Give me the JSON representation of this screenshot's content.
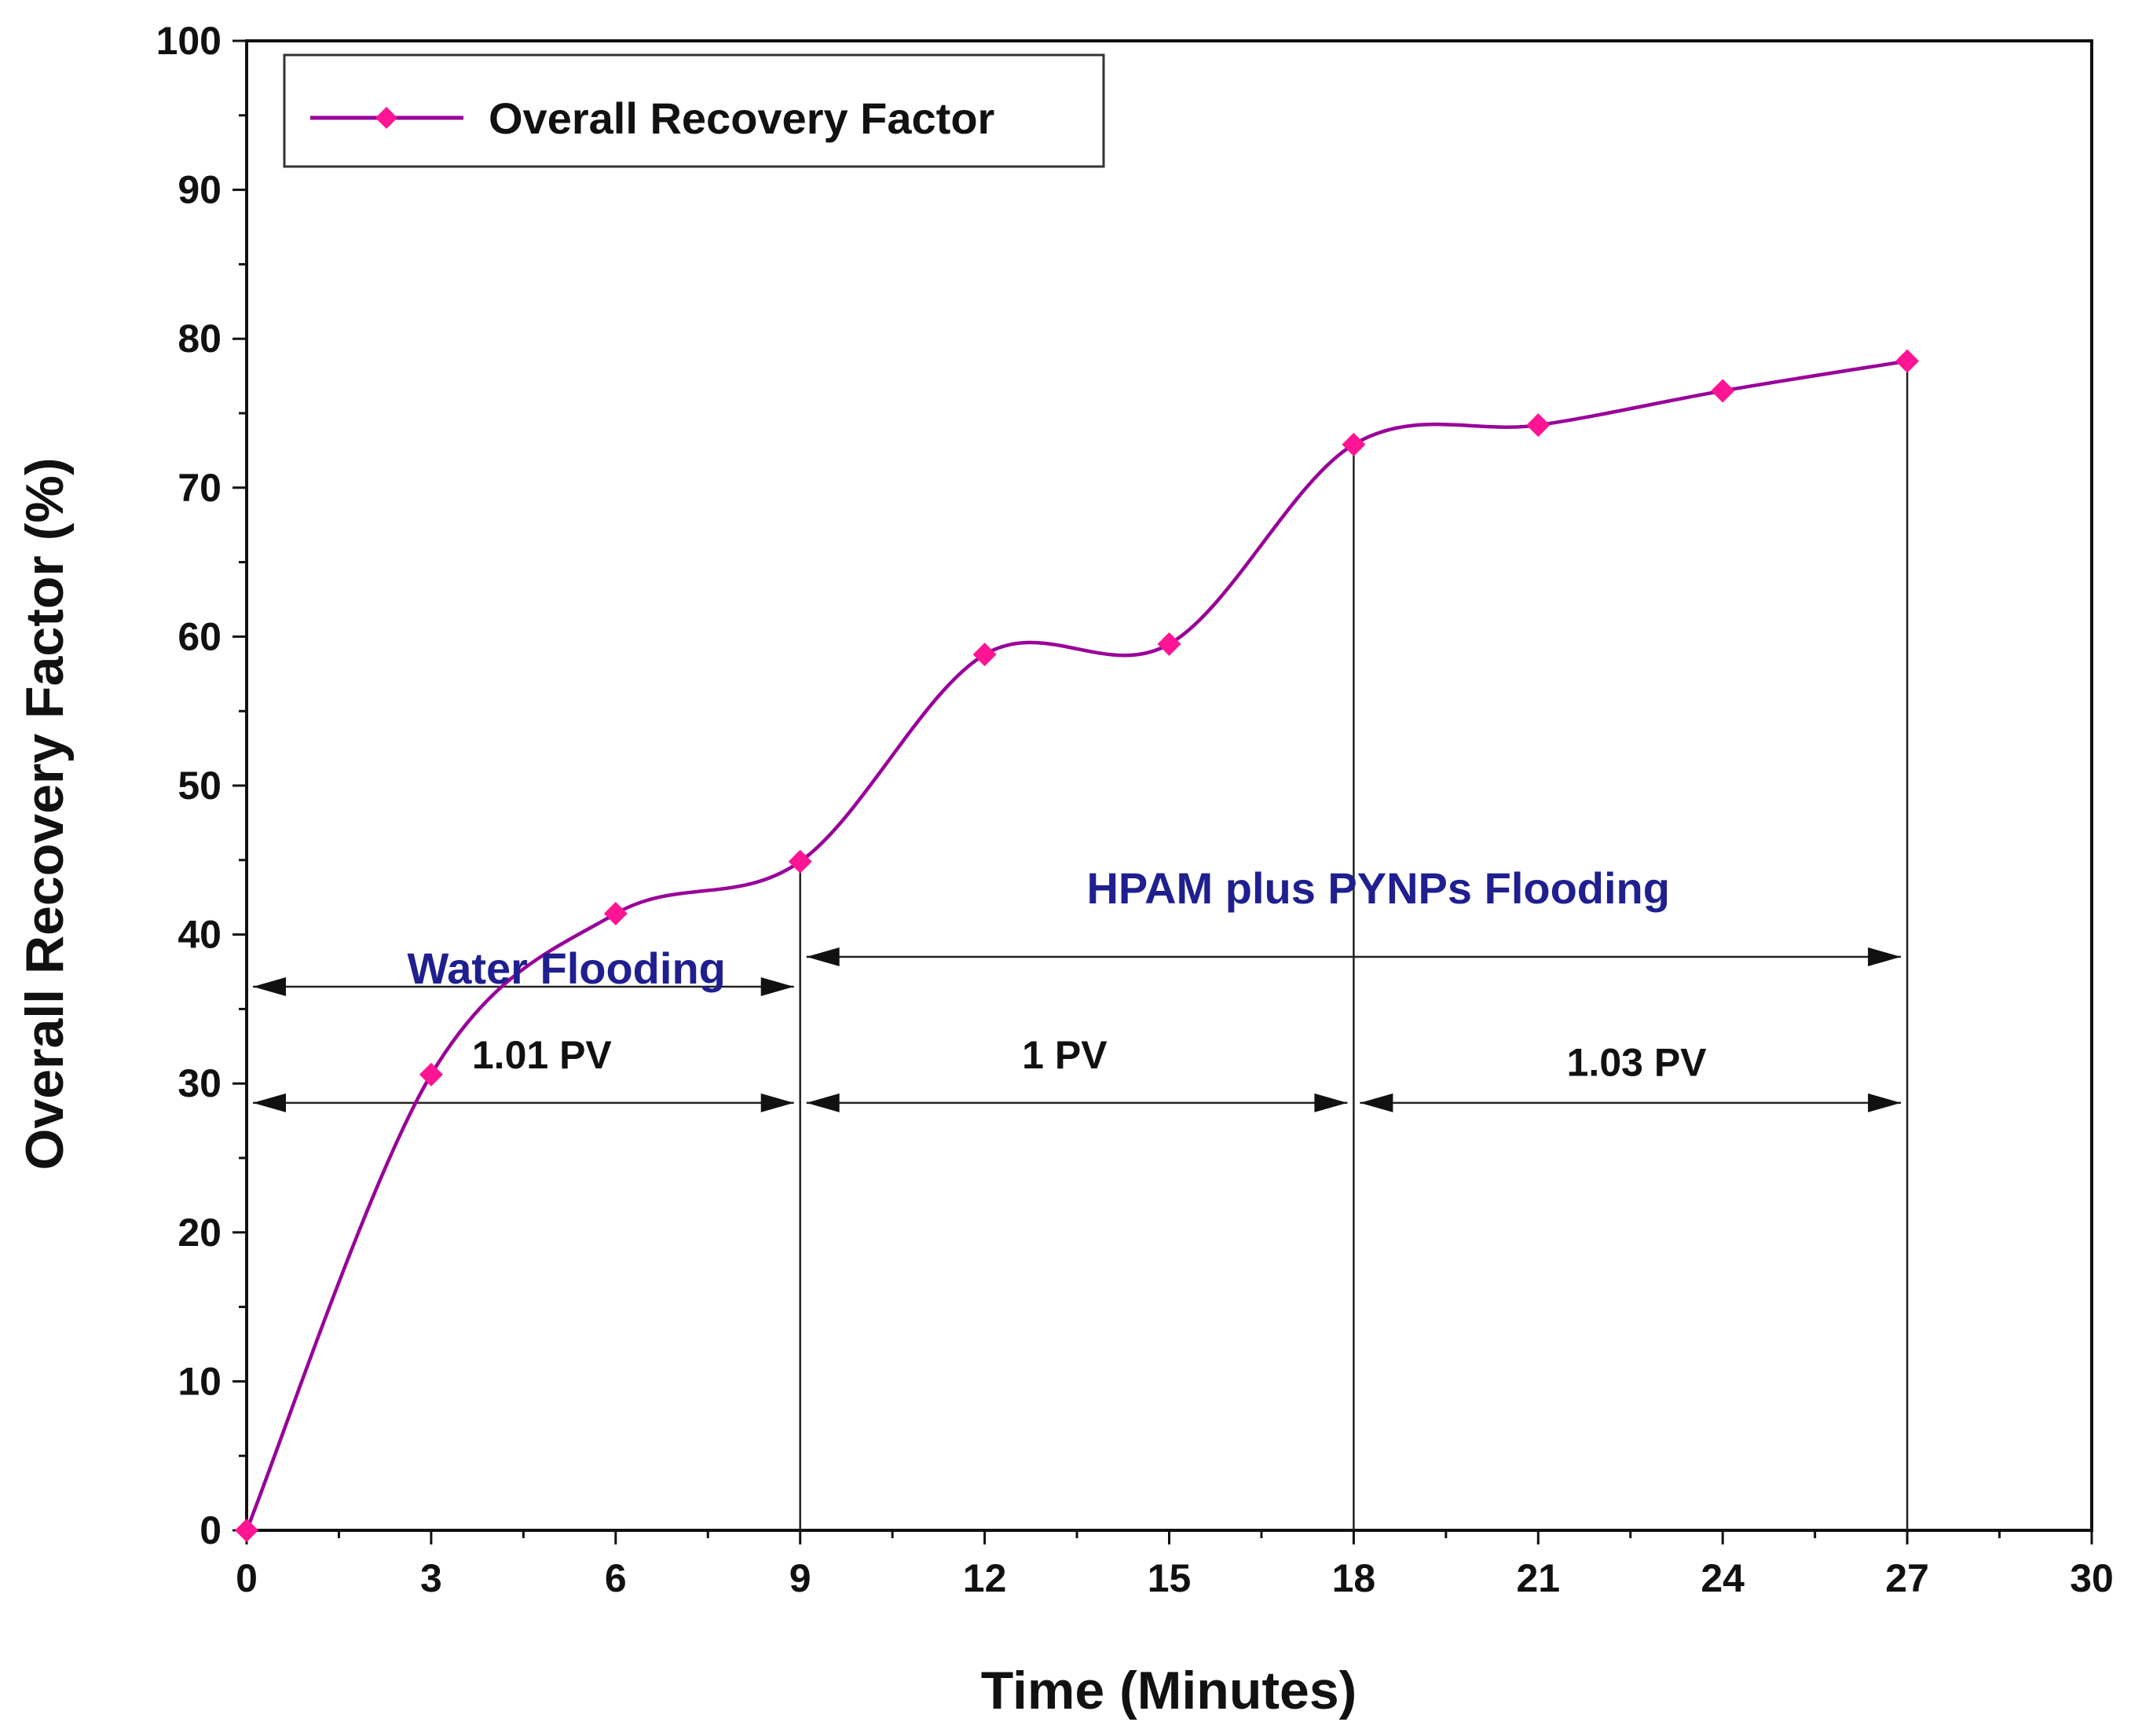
{
  "chart_data": {
    "type": "line",
    "title": "",
    "xlabel": "Time (Minutes)",
    "ylabel": "Overall Recovery Factor (%)",
    "xlim": [
      0,
      30
    ],
    "ylim": [
      0,
      100
    ],
    "xticks": [
      0,
      3,
      6,
      9,
      12,
      15,
      18,
      21,
      24,
      27,
      30
    ],
    "yticks": [
      0,
      10,
      20,
      30,
      40,
      50,
      60,
      70,
      80,
      90,
      100
    ],
    "grid": false,
    "legend_position": "top-left",
    "series": [
      {
        "name": "Overall Recovery Factor",
        "x": [
          0,
          3,
          6,
          9,
          12,
          15,
          18,
          21,
          24,
          27
        ],
        "y": [
          0,
          30.6,
          41.4,
          44.9,
          58.8,
          59.5,
          72.9,
          74.2,
          76.5,
          78.5
        ]
      }
    ],
    "vertical_lines_x": [
      9,
      18,
      27
    ],
    "annotations": [
      {
        "id": "water",
        "text": "Water Flooding",
        "x": 5.2,
        "y": 36.7,
        "color": "#1f1f8f"
      },
      {
        "id": "hpam",
        "text": "HPAM plus PYNPs Flooding",
        "x": 18.4,
        "y": 42.1,
        "color": "#1f1f8f"
      },
      {
        "id": "pv1",
        "text": "1.01 PV",
        "x": 4.8,
        "y": 31.0,
        "color": "#111111"
      },
      {
        "id": "pv2",
        "text": "1 PV",
        "x": 13.3,
        "y": 31.0,
        "color": "#111111"
      },
      {
        "id": "pv3",
        "text": "1.03 PV",
        "x": 22.6,
        "y": 30.5,
        "color": "#111111"
      }
    ],
    "spans": [
      {
        "x1": 0,
        "x2": 9,
        "y": 36.5
      },
      {
        "x1": 9,
        "x2": 27,
        "y": 38.5
      },
      {
        "x1": 0,
        "x2": 9,
        "y": 28.7
      },
      {
        "x1": 9,
        "x2": 18,
        "y": 28.7
      },
      {
        "x1": 18,
        "x2": 27,
        "y": 28.7
      }
    ],
    "colors": {
      "line": "#990099",
      "marker": "#ff1493",
      "axis": "#111111"
    }
  }
}
